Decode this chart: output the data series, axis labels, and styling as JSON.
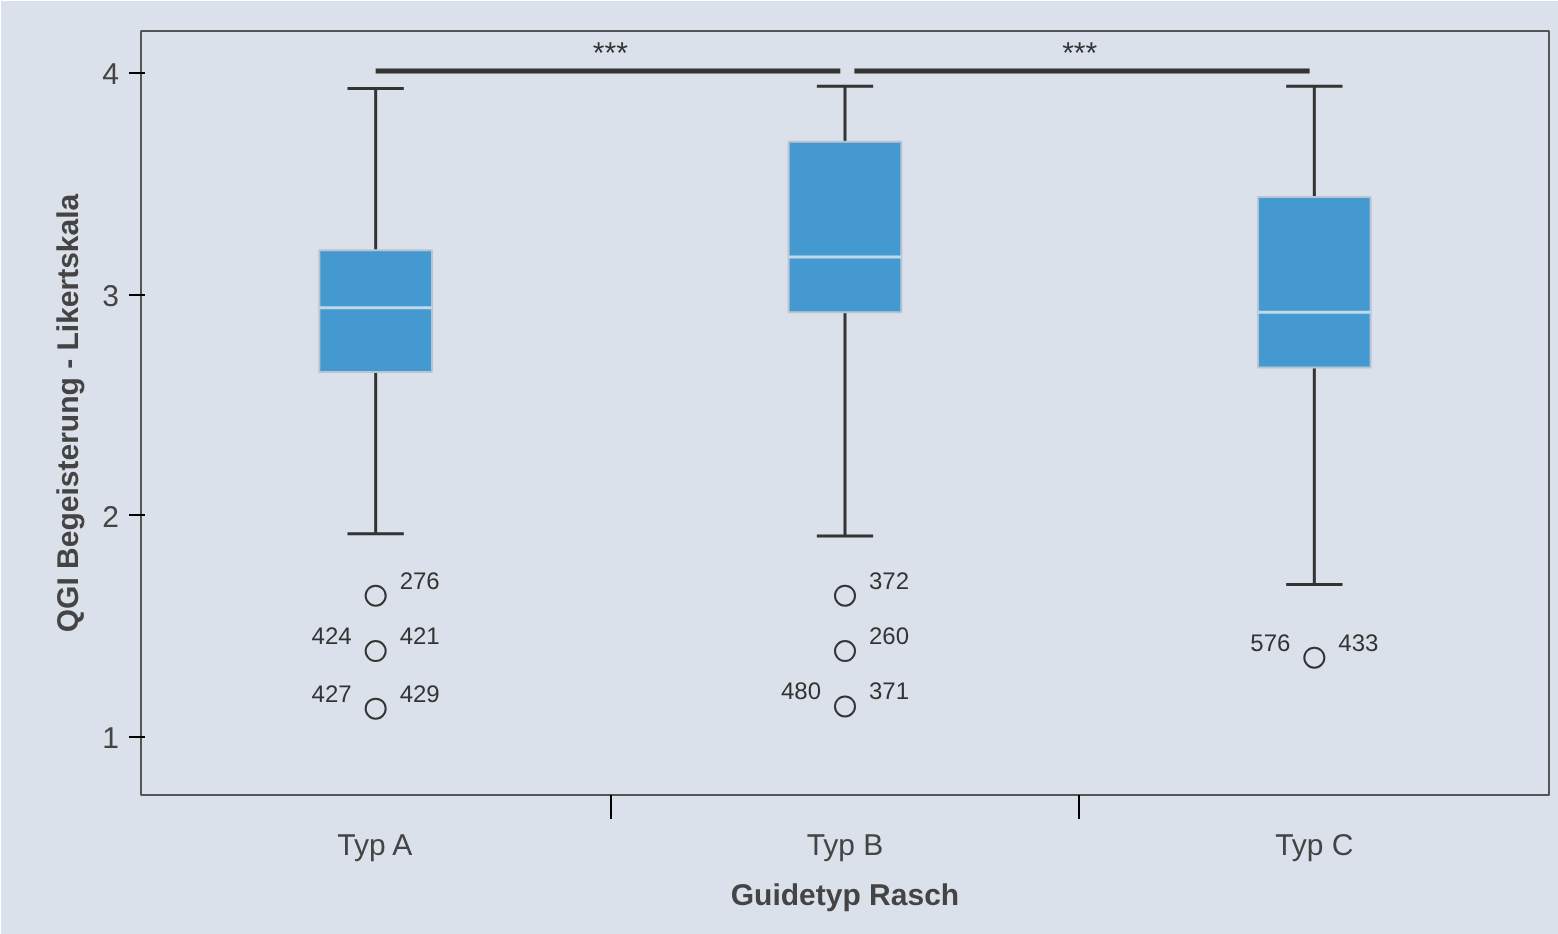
{
  "chart_data": {
    "type": "box",
    "xlabel": "Guidetyp Rasch",
    "ylabel": "QGI Begeisterung - Likertskala",
    "categories": [
      "Typ A",
      "Typ B",
      "Typ C"
    ],
    "color": "#4399d0",
    "boxes": [
      {
        "low": 1.92,
        "q1": 2.65,
        "median": 2.94,
        "q3": 3.2,
        "high": 3.93
      },
      {
        "low": 1.91,
        "q1": 2.92,
        "median": 3.17,
        "q3": 3.69,
        "high": 3.94
      },
      {
        "low": 1.69,
        "q1": 2.67,
        "median": 2.92,
        "q3": 3.44,
        "high": 3.94
      }
    ],
    "series": [
      {
        "type": "scatter",
        "color": "#333333",
        "x": [
          "Typ A",
          "Typ A",
          "Typ A",
          "Typ B",
          "Typ B",
          "Typ B",
          "Typ C"
        ],
        "values": [
          1.64,
          1.39,
          1.13,
          1.64,
          1.39,
          1.14,
          1.36
        ]
      }
    ],
    "ylim": [
      0.74,
      4.19
    ],
    "yticks": [
      1,
      2,
      3,
      4
    ],
    "grid": false,
    "marker": "circle",
    "annotations": [
      "***",
      "***",
      {
        "text": "276",
        "x": "Typ A",
        "y": 1.64
      },
      {
        "text": "424",
        "x": "Typ A",
        "y": 1.39
      },
      {
        "text": "421",
        "x": "Typ A",
        "y": 1.39
      },
      {
        "text": "427",
        "x": "Typ A",
        "y": 1.13
      },
      {
        "text": "429",
        "x": "Typ A",
        "y": 1.13
      },
      {
        "text": "372",
        "x": "Typ B",
        "y": 1.64
      },
      {
        "text": "260",
        "x": "Typ B",
        "y": 1.39
      },
      {
        "text": "480",
        "x": "Typ B",
        "y": 1.14
      },
      {
        "text": "371",
        "x": "Typ B",
        "y": 1.14
      },
      {
        "text": "576",
        "x": "Typ C",
        "y": 1.36
      },
      {
        "text": "433",
        "x": "Typ C",
        "y": 1.36
      }
    ]
  }
}
